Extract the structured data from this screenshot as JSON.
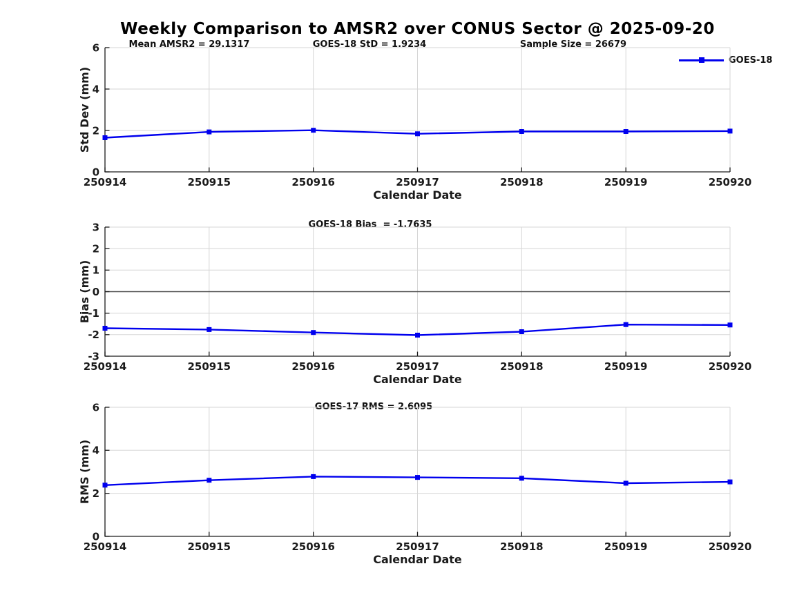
{
  "title": "Weekly Comparison to AMSR2 over CONUS Sector @ 2025-09-20",
  "legend": {
    "label": "GOES-18",
    "color": "#0000ee"
  },
  "chart_data": [
    {
      "type": "line",
      "name": "std-dev",
      "ylabel": "Std Dev (mm)",
      "xlabel": "Calendar Date",
      "ylim": [
        0,
        6
      ],
      "yticks": [
        0,
        2,
        4,
        6
      ],
      "categories": [
        "250914",
        "250915",
        "250916",
        "250917",
        "250918",
        "250919",
        "250920"
      ],
      "series": [
        {
          "name": "GOES-18",
          "color": "#0000ee",
          "values": [
            1.65,
            1.93,
            2.01,
            1.84,
            1.95,
            1.95,
            1.97
          ]
        }
      ],
      "annotations": [
        {
          "text": "Mean AMSR2 = 29.1317"
        },
        {
          "text": "GOES-18 StD = 1.9234"
        },
        {
          "text": "Sample Size = 26679"
        }
      ],
      "grid": true,
      "zero_line": false,
      "legend_position": "top-right-outside"
    },
    {
      "type": "line",
      "name": "bias",
      "ylabel": "Bias (mm)",
      "xlabel": "Calendar Date",
      "ylim": [
        -3,
        3
      ],
      "yticks": [
        -3,
        -2,
        -1,
        0,
        1,
        2,
        3
      ],
      "categories": [
        "250914",
        "250915",
        "250916",
        "250917",
        "250918",
        "250919",
        "250920"
      ],
      "series": [
        {
          "name": "GOES-18",
          "color": "#0000ee",
          "values": [
            -1.7,
            -1.76,
            -1.9,
            -2.02,
            -1.86,
            -1.53,
            -1.55
          ]
        }
      ],
      "annotations": [
        {
          "text": "GOES-18 Bias  = -1.7635"
        }
      ],
      "grid": true,
      "zero_line": true
    },
    {
      "type": "line",
      "name": "rms",
      "ylabel": "RMS (mm)",
      "xlabel": "Calendar Date",
      "ylim": [
        0,
        6
      ],
      "yticks": [
        0,
        2,
        4,
        6
      ],
      "categories": [
        "250914",
        "250915",
        "250916",
        "250917",
        "250918",
        "250919",
        "250920"
      ],
      "series": [
        {
          "name": "GOES-18",
          "color": "#0000ee",
          "values": [
            2.38,
            2.61,
            2.78,
            2.74,
            2.7,
            2.47,
            2.53
          ]
        }
      ],
      "annotations": [
        {
          "text": "GOES-17 RMS = 2.6095"
        }
      ],
      "grid": true,
      "zero_line": false
    }
  ]
}
